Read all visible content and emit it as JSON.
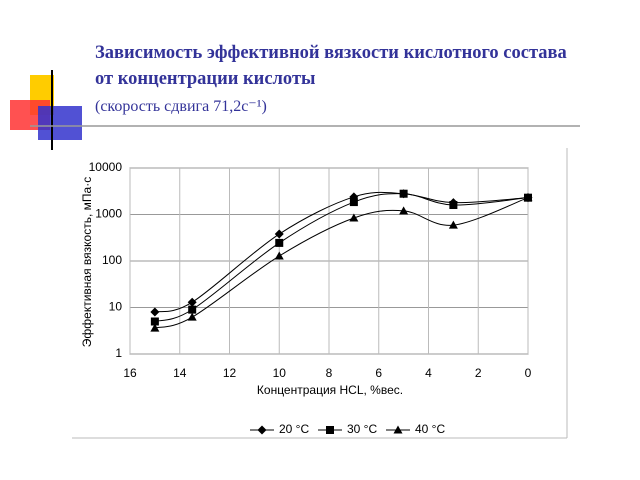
{
  "chart_data": {
    "type": "line",
    "title": "Зависимость эффективной вязкости кислотного состава от концентрации кислоты",
    "subtitle": "(скорость сдвига 71,2с⁻¹)",
    "x_label": "Концентрация HCL, %вес.",
    "y_label": "Эффективная вязкость, мПа·с",
    "x": [
      15,
      13.5,
      10,
      7,
      5,
      3,
      0
    ],
    "series": [
      {
        "name": "20 °C",
        "color": "#000000",
        "marker": "diamond",
        "values": [
          8,
          13,
          380,
          2400,
          2800,
          1800,
          2300
        ]
      },
      {
        "name": "30 °C",
        "color": "#000000",
        "marker": "square",
        "values": [
          5,
          9,
          245,
          1850,
          2800,
          1600,
          2300
        ]
      },
      {
        "name": "40 °C",
        "color": "#000000",
        "marker": "triangle",
        "values": [
          3.6,
          6.2,
          128,
          840,
          1200,
          590,
          2300
        ]
      }
    ],
    "xlim": [
      16,
      0
    ],
    "xticks": [
      16,
      14,
      12,
      10,
      8,
      6,
      4,
      2,
      0
    ],
    "ylim": [
      1,
      10000
    ],
    "yticks": [
      1,
      10,
      100,
      1000,
      10000
    ],
    "log_y": true,
    "grid": true,
    "legend": "bottom"
  }
}
